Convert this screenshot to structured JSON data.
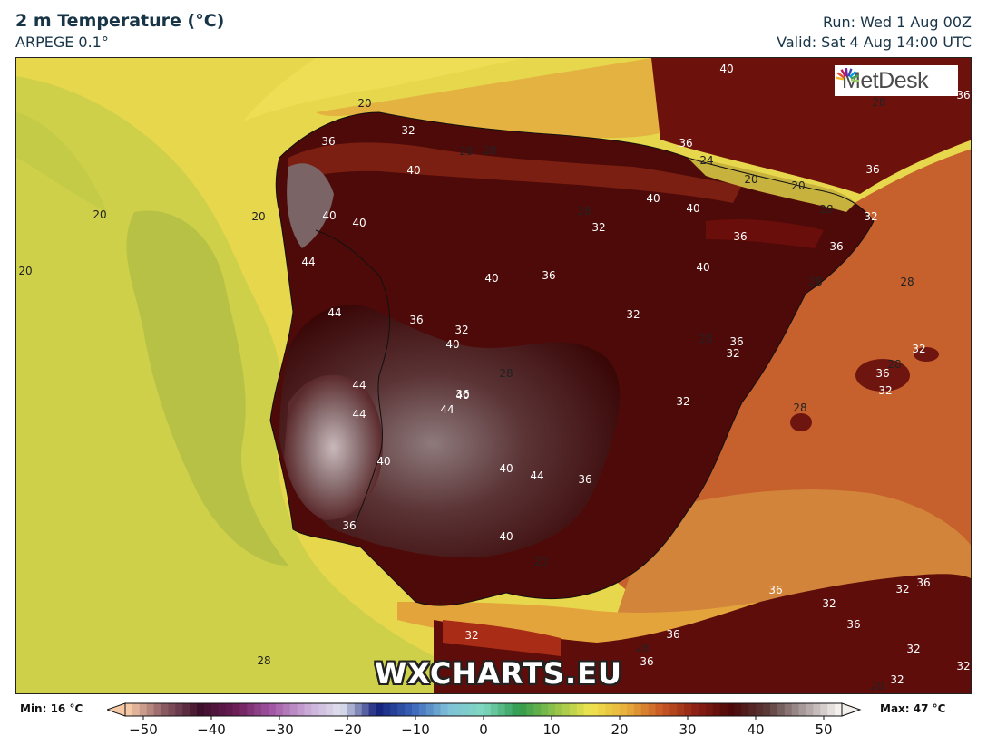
{
  "header": {
    "title": "2 m Temperature (°C)",
    "model": "ARPEGE 0.1°",
    "run": "Run: Wed 1 Aug 00Z",
    "valid": "Valid: Sat 4 Aug 14:00 UTC"
  },
  "logo": {
    "text": "MetDesk"
  },
  "watermark": "WXCHARTS.EU",
  "colorbar": {
    "min_label": "Min: 16 °C",
    "max_label": "Max: 47 °C",
    "ticks": [
      "−50",
      "−40",
      "−30",
      "−20",
      "−10",
      "0",
      "10",
      "20",
      "30",
      "40",
      "50"
    ],
    "range": [
      -50,
      50
    ],
    "colors": [
      "#f6c9a6",
      "#8a5a63",
      "#3d0f2b",
      "#6a1c55",
      "#a054a2",
      "#c8a7d6",
      "#dfe2ee",
      "#14207a",
      "#3a64b8",
      "#7fc1d9",
      "#7fd8c0",
      "#2f9a4d",
      "#8fc24a",
      "#efe44e",
      "#e8b03c",
      "#c95a24",
      "#8c1f14",
      "#4a0808",
      "#5a3a3a",
      "#a89a9a",
      "#f4f0ee"
    ]
  },
  "map_labels": [
    {
      "t": "40",
      "c": "#fff"
    },
    {
      "t": "28",
      "c": "#222"
    },
    {
      "t": "36",
      "c": "#fff"
    },
    {
      "t": "20",
      "c": "#222"
    },
    {
      "t": "32",
      "c": "#fff"
    },
    {
      "t": "28",
      "c": "#222"
    },
    {
      "t": "28",
      "c": "#222"
    },
    {
      "t": "36",
      "c": "#fff"
    },
    {
      "t": "24",
      "c": "#222"
    },
    {
      "t": "20",
      "c": "#222"
    },
    {
      "t": "20",
      "c": "#222"
    },
    {
      "t": "36",
      "c": "#fff"
    },
    {
      "t": "28",
      "c": "#222"
    },
    {
      "t": "32",
      "c": "#fff"
    },
    {
      "t": "20",
      "c": "#222"
    },
    {
      "t": "20",
      "c": "#222"
    },
    {
      "t": "36",
      "c": "#fff"
    },
    {
      "t": "40",
      "c": "#fff"
    },
    {
      "t": "40",
      "c": "#fff"
    },
    {
      "t": "40",
      "c": "#fff"
    },
    {
      "t": "28",
      "c": "#222"
    },
    {
      "t": "32",
      "c": "#fff"
    },
    {
      "t": "40",
      "c": "#fff"
    },
    {
      "t": "40",
      "c": "#fff"
    },
    {
      "t": "36",
      "c": "#fff"
    },
    {
      "t": "20",
      "c": "#222"
    },
    {
      "t": "44",
      "c": "#fff"
    },
    {
      "t": "40",
      "c": "#fff"
    },
    {
      "t": "36",
      "c": "#fff"
    },
    {
      "t": "40",
      "c": "#fff"
    },
    {
      "t": "36",
      "c": "#fff"
    },
    {
      "t": "28",
      "c": "#222"
    },
    {
      "t": "28",
      "c": "#222"
    },
    {
      "t": "44",
      "c": "#fff"
    },
    {
      "t": "36",
      "c": "#fff"
    },
    {
      "t": "32",
      "c": "#fff"
    },
    {
      "t": "32",
      "c": "#fff"
    },
    {
      "t": "28",
      "c": "#222"
    },
    {
      "t": "36",
      "c": "#fff"
    },
    {
      "t": "32",
      "c": "#fff"
    },
    {
      "t": "32",
      "c": "#fff"
    },
    {
      "t": "28",
      "c": "#222"
    },
    {
      "t": "40",
      "c": "#fff"
    },
    {
      "t": "36",
      "c": "#fff"
    },
    {
      "t": "28",
      "c": "#222"
    },
    {
      "t": "44",
      "c": "#fff"
    },
    {
      "t": "40",
      "c": "#fff"
    },
    {
      "t": "32",
      "c": "#fff"
    },
    {
      "t": "44",
      "c": "#fff"
    },
    {
      "t": "44",
      "c": "#fff"
    },
    {
      "t": "36",
      "c": "#fff"
    },
    {
      "t": "32",
      "c": "#fff"
    },
    {
      "t": "28",
      "c": "#222"
    },
    {
      "t": "40",
      "c": "#fff"
    },
    {
      "t": "40",
      "c": "#fff"
    },
    {
      "t": "44",
      "c": "#fff"
    },
    {
      "t": "36",
      "c": "#fff"
    },
    {
      "t": "36",
      "c": "#fff"
    },
    {
      "t": "40",
      "c": "#fff"
    },
    {
      "t": "20",
      "c": "#222"
    },
    {
      "t": "36",
      "c": "#fff"
    },
    {
      "t": "36",
      "c": "#fff"
    },
    {
      "t": "32",
      "c": "#fff"
    },
    {
      "t": "32",
      "c": "#fff"
    },
    {
      "t": "36",
      "c": "#fff"
    },
    {
      "t": "36",
      "c": "#fff"
    },
    {
      "t": "32",
      "c": "#fff"
    },
    {
      "t": "28",
      "c": "#222"
    },
    {
      "t": "36",
      "c": "#fff"
    },
    {
      "t": "32",
      "c": "#fff"
    },
    {
      "t": "20",
      "c": "#222"
    },
    {
      "t": "28",
      "c": "#222"
    },
    {
      "t": "32",
      "c": "#fff"
    },
    {
      "t": "32",
      "c": "#fff"
    }
  ],
  "colors": {
    "sea_green": "#b7c24a",
    "sea_yellow": "#e9dc4f",
    "land_hot": "#5a0c0a",
    "land_extreme": "#9a8486",
    "med_orange": "#c9622a"
  }
}
